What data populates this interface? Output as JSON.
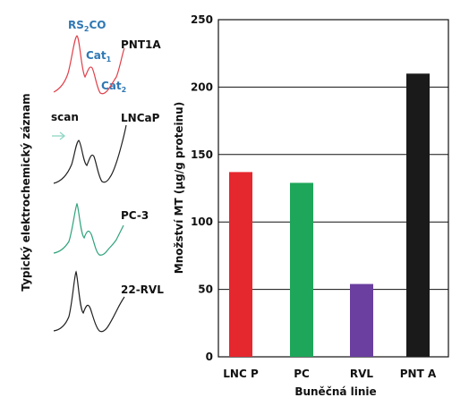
{
  "left_panel": {
    "ylabel": "Typický elektrochemický záznam",
    "peak_labels": {
      "rs2co_main": "RS",
      "rs2co_sub": "2",
      "rs2co_tail": "CO",
      "cat1_main": "Cat",
      "cat1_sub": "1",
      "cat2_main": "Cat",
      "cat2_sub": "2"
    },
    "scan_label": "scan",
    "traces": [
      {
        "name": "PNT1A",
        "color": "#e0404a"
      },
      {
        "name": "LNCaP",
        "color": "#202020"
      },
      {
        "name": "PC-3",
        "color": "#2fa37a"
      },
      {
        "name": "22-RVL",
        "color": "#202020"
      }
    ]
  },
  "chart_data": {
    "type": "bar",
    "title": "",
    "categories": [
      "LNC P",
      "PC",
      "RVL",
      "PNT A"
    ],
    "values": [
      137,
      129,
      54,
      210
    ],
    "colors": [
      "#e5282e",
      "#1ea65a",
      "#6a3fa0",
      "#1a1a1a"
    ],
    "xlabel": "Buněčná linie",
    "ylabel": "Množství MT (μg/g proteinu)",
    "ylim": [
      0,
      250
    ],
    "yticks": [
      0,
      50,
      100,
      150,
      200,
      250
    ],
    "grid": true
  }
}
